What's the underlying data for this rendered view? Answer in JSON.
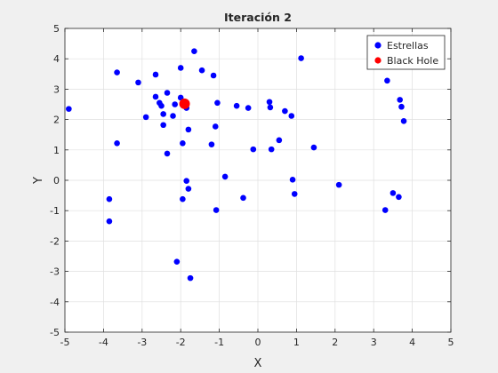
{
  "chart_data": {
    "type": "scatter",
    "title": "Iteración 2",
    "xlabel": "X",
    "ylabel": "Y",
    "xlim": [
      -5,
      5
    ],
    "ylim": [
      -5,
      5
    ],
    "xticks": [
      -5,
      -4,
      -3,
      -2,
      -1,
      0,
      1,
      2,
      3,
      4,
      5
    ],
    "yticks": [
      -5,
      -4,
      -3,
      -2,
      -1,
      0,
      1,
      2,
      3,
      4,
      5
    ],
    "grid": true,
    "legend_position": "top-right",
    "series": [
      {
        "name": "Estrellas",
        "color": "#0000ff",
        "points": [
          [
            -4.9,
            2.35
          ],
          [
            -3.65,
            3.55
          ],
          [
            -3.65,
            1.22
          ],
          [
            -3.85,
            -0.62
          ],
          [
            -3.85,
            -1.35
          ],
          [
            -3.1,
            3.22
          ],
          [
            -2.9,
            2.08
          ],
          [
            -2.65,
            3.48
          ],
          [
            -2.65,
            2.75
          ],
          [
            -2.55,
            2.55
          ],
          [
            -2.5,
            2.45
          ],
          [
            -2.45,
            2.18
          ],
          [
            -2.45,
            1.82
          ],
          [
            -2.35,
            2.88
          ],
          [
            -2.35,
            0.88
          ],
          [
            -2.2,
            2.12
          ],
          [
            -2.15,
            2.5
          ],
          [
            -2.1,
            -2.68
          ],
          [
            -2.0,
            3.7
          ],
          [
            -2.0,
            2.72
          ],
          [
            -1.95,
            1.22
          ],
          [
            -1.95,
            -0.62
          ],
          [
            -1.85,
            2.38
          ],
          [
            -1.85,
            -0.02
          ],
          [
            -1.8,
            -0.28
          ],
          [
            -1.8,
            1.67
          ],
          [
            -1.75,
            -3.22
          ],
          [
            -1.65,
            4.25
          ],
          [
            -1.45,
            3.62
          ],
          [
            -1.2,
            1.18
          ],
          [
            -1.15,
            3.45
          ],
          [
            -1.1,
            1.77
          ],
          [
            -1.05,
            2.55
          ],
          [
            -1.08,
            -0.98
          ],
          [
            -0.85,
            0.12
          ],
          [
            -0.55,
            2.45
          ],
          [
            -0.38,
            -0.58
          ],
          [
            -0.25,
            2.38
          ],
          [
            -0.12,
            1.02
          ],
          [
            0.3,
            2.58
          ],
          [
            0.32,
            2.4
          ],
          [
            0.35,
            1.02
          ],
          [
            0.55,
            1.32
          ],
          [
            0.7,
            2.28
          ],
          [
            0.87,
            2.12
          ],
          [
            0.9,
            0.02
          ],
          [
            0.95,
            -0.45
          ],
          [
            1.12,
            4.02
          ],
          [
            1.45,
            1.08
          ],
          [
            2.1,
            -0.15
          ],
          [
            3.3,
            -0.98
          ],
          [
            3.35,
            3.28
          ],
          [
            3.5,
            -0.42
          ],
          [
            3.65,
            -0.55
          ],
          [
            3.68,
            2.65
          ],
          [
            3.72,
            2.42
          ],
          [
            3.78,
            1.95
          ]
        ]
      },
      {
        "name": "Black Hole",
        "color": "#ff0000",
        "points": [
          [
            -1.9,
            2.52
          ]
        ]
      }
    ]
  }
}
